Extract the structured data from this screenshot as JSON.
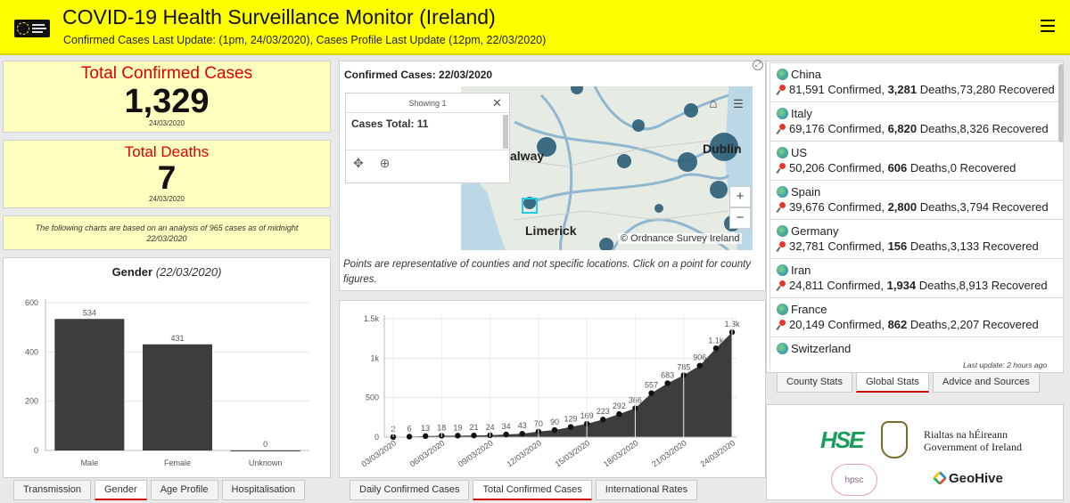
{
  "header": {
    "title": "COVID-19 Health Surveillance Monitor (Ireland)",
    "subtitle": "Confirmed Cases Last Update: (1pm, 24/03/2020), Cases Profile Last Update (12pm, 22/03/2020)"
  },
  "confirmed": {
    "label": "Total Confirmed Cases",
    "value": "1,329",
    "date": "24/03/2020"
  },
  "deaths": {
    "label": "Total Deaths",
    "value": "7",
    "date": "24/03/2020"
  },
  "note": "The following charts are based on an analysis of 965 cases as of midnight 22/03/2020",
  "gender_chart": {
    "title": "Gender",
    "subtitle": "(22/03/2020)",
    "chart_data": {
      "type": "bar",
      "categories": [
        "Male",
        "Female",
        "Unknown"
      ],
      "values": [
        534,
        431,
        0
      ],
      "value_labels": [
        "534",
        "431",
        "0"
      ],
      "ylim": [
        0,
        600
      ],
      "yticks": [
        0,
        200,
        400,
        600
      ],
      "ytick_labels": [
        "0",
        "200",
        "400",
        "600"
      ],
      "bar_color": "#3d3d3d"
    }
  },
  "left_tabs": [
    "Transmission",
    "Gender",
    "Age Profile",
    "Hospitalisation"
  ],
  "left_active_tab": "Gender",
  "map": {
    "title": "Confirmed Cases: 22/03/2020",
    "popup_header": "Showing 1",
    "popup_close": "✕",
    "popup_body": "Cases Total: 11",
    "labels": {
      "galway": "alway",
      "dublin": "Dublin",
      "limerick": "Limerick"
    },
    "attribution": "© Ordnance Survey Ireland",
    "zoom_in": "+",
    "zoom_out": "−",
    "caption": "Points are representative of counties and not specific locations. Click on a point for county figures."
  },
  "cumulative_chart": {
    "chart_data": {
      "type": "area",
      "x": [
        "03/03/2020",
        "04/03/2020",
        "05/03/2020",
        "06/03/2020",
        "07/03/2020",
        "08/03/2020",
        "09/03/2020",
        "10/03/2020",
        "11/03/2020",
        "12/03/2020",
        "13/03/2020",
        "14/03/2020",
        "15/03/2020",
        "16/03/2020",
        "17/03/2020",
        "18/03/2020",
        "19/03/2020",
        "20/03/2020",
        "21/03/2020",
        "22/03/2020",
        "23/03/2020",
        "24/03/2020"
      ],
      "values": [
        2,
        6,
        13,
        18,
        19,
        21,
        24,
        34,
        43,
        70,
        90,
        129,
        169,
        223,
        292,
        366,
        557,
        683,
        785,
        906,
        1125,
        1329
      ],
      "value_labels": [
        "2",
        "6",
        "13",
        "18",
        "19",
        "21",
        "24",
        "34",
        "43",
        "70",
        "90",
        "129",
        "169",
        "223",
        "292",
        "366",
        "557",
        "683",
        "785",
        "906",
        "1.1k",
        "1.3k"
      ],
      "xtick_labels": [
        "03/03/2020",
        "06/03/2020",
        "09/03/2020",
        "12/03/2020",
        "15/03/2020",
        "18/03/2020",
        "21/03/2020",
        "24/03/2020"
      ],
      "ylim": [
        0,
        1500
      ],
      "yticks": [
        0,
        500,
        1000,
        1500
      ],
      "ytick_labels": [
        "0",
        "500",
        "1k",
        "1.5k"
      ],
      "fill_color": "#3d3d3d"
    }
  },
  "middle_tabs": [
    "Daily Confirmed Cases",
    "Total Confirmed Cases",
    "International Rates"
  ],
  "middle_active_tab": "Total Confirmed Cases",
  "countries": [
    {
      "name": "China",
      "confirmed": "81,591",
      "deaths": "3,281",
      "recovered": "73,280"
    },
    {
      "name": "Italy",
      "confirmed": "69,176",
      "deaths": "6,820",
      "recovered": "8,326"
    },
    {
      "name": "US",
      "confirmed": "50,206",
      "deaths": "606",
      "recovered": "0"
    },
    {
      "name": "Spain",
      "confirmed": "39,676",
      "deaths": "2,800",
      "recovered": "3,794"
    },
    {
      "name": "Germany",
      "confirmed": "32,781",
      "deaths": "156",
      "recovered": "3,133"
    },
    {
      "name": "Iran",
      "confirmed": "24,811",
      "deaths": "1,934",
      "recovered": "8,913"
    },
    {
      "name": "France",
      "confirmed": "20,149",
      "deaths": "862",
      "recovered": "2,207"
    },
    {
      "name": "Switzerland",
      "confirmed": "",
      "deaths": "",
      "recovered": ""
    }
  ],
  "country_words": {
    "confirmed": " Confirmed, ",
    "deaths": " Deaths,",
    "recovered": " Recovered"
  },
  "last_update": "Last update: 2 hours ago",
  "right_tabs": [
    "County Stats",
    "Global Stats",
    "Advice and Sources"
  ],
  "right_active_tab": "Global Stats",
  "logos": {
    "hse": "HSE",
    "gov_line1": "Rialtas na hÉireann",
    "gov_line2": "Government of Ireland",
    "hpsc": "hpsc",
    "geohive": "GeoHive"
  },
  "colors": {
    "header_bg": "#ffff00",
    "card_bg": "#ffffc0",
    "alert_red": "#e00000",
    "map_dot": "#2e5f7a",
    "active_tab": "#d00000"
  }
}
